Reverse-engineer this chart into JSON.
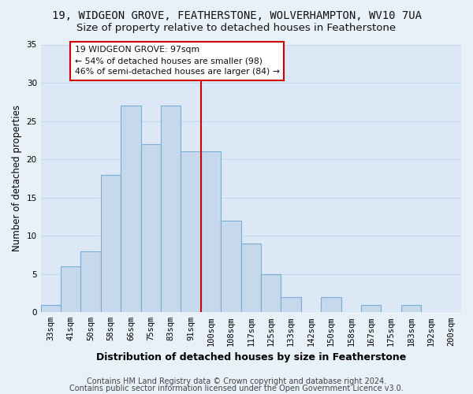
{
  "title": "19, WIDGEON GROVE, FEATHERSTONE, WOLVERHAMPTON, WV10 7UA",
  "subtitle": "Size of property relative to detached houses in Featherstone",
  "xlabel": "Distribution of detached houses by size in Featherstone",
  "ylabel": "Number of detached properties",
  "bar_labels": [
    "33sqm",
    "41sqm",
    "50sqm",
    "58sqm",
    "66sqm",
    "75sqm",
    "83sqm",
    "91sqm",
    "100sqm",
    "108sqm",
    "117sqm",
    "125sqm",
    "133sqm",
    "142sqm",
    "150sqm",
    "158sqm",
    "167sqm",
    "175sqm",
    "183sqm",
    "192sqm",
    "200sqm"
  ],
  "bar_values": [
    1,
    6,
    8,
    18,
    27,
    22,
    27,
    21,
    21,
    12,
    9,
    5,
    2,
    0,
    2,
    0,
    1,
    0,
    1,
    0,
    0
  ],
  "bar_color": "#c5d8ec",
  "bar_edgecolor": "#7aafd4",
  "ylim": [
    0,
    35
  ],
  "yticks": [
    0,
    5,
    10,
    15,
    20,
    25,
    30,
    35
  ],
  "vline_index": 8,
  "vline_color": "#cc0000",
  "annotation_title": "19 WIDGEON GROVE: 97sqm",
  "annotation_line1": "← 54% of detached houses are smaller (98)",
  "annotation_line2": "46% of semi-detached houses are larger (84) →",
  "annotation_box_color": "#ffffff",
  "annotation_box_edgecolor": "#cc0000",
  "footer1": "Contains HM Land Registry data © Crown copyright and database right 2024.",
  "footer2": "Contains public sector information licensed under the Open Government Licence v3.0.",
  "bg_color": "#e8f0f8",
  "plot_bg_color": "#dce8f5",
  "grid_color": "#c8d8e8",
  "title_fontsize": 10,
  "subtitle_fontsize": 9.5,
  "xlabel_fontsize": 9,
  "ylabel_fontsize": 8.5,
  "tick_fontsize": 7.5,
  "footer_fontsize": 7
}
